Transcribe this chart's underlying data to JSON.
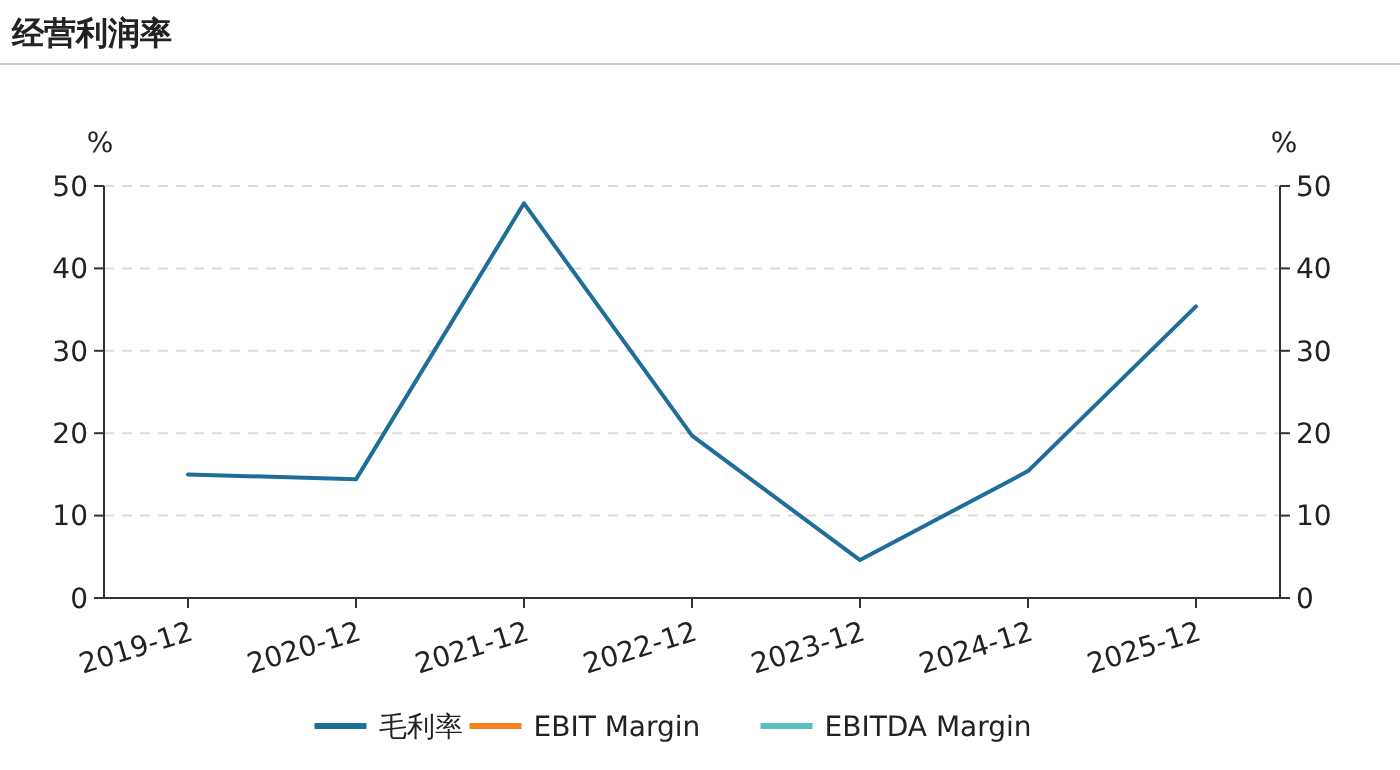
{
  "chart_data": {
    "type": "line",
    "title": "经营利润率",
    "ylabel": "%",
    "y2label": "%",
    "categories": [
      "2019-12",
      "2020-12",
      "2021-12",
      "2022-12",
      "2023-12",
      "2024-12",
      "2025-12"
    ],
    "series": [
      {
        "name": "毛利率",
        "color": "#1f6e99",
        "values": [
          15.0,
          14.4,
          47.9,
          19.7,
          4.6,
          15.4,
          35.4
        ]
      },
      {
        "name": "EBIT Margin",
        "color": "#f5821f",
        "values": [
          null,
          null,
          null,
          null,
          null,
          null,
          null
        ]
      },
      {
        "name": "EBITDA Margin",
        "color": "#5bbfbd",
        "values": [
          null,
          null,
          null,
          null,
          null,
          null,
          null
        ]
      }
    ],
    "ylim": [
      0,
      50
    ],
    "yticks": [
      0,
      10,
      20,
      30,
      40,
      50
    ],
    "y2lim": [
      0,
      50
    ],
    "y2ticks": [
      0,
      10,
      20,
      30,
      40,
      50
    ],
    "grid": "y",
    "legend": "bottom",
    "line_style": "solid"
  }
}
